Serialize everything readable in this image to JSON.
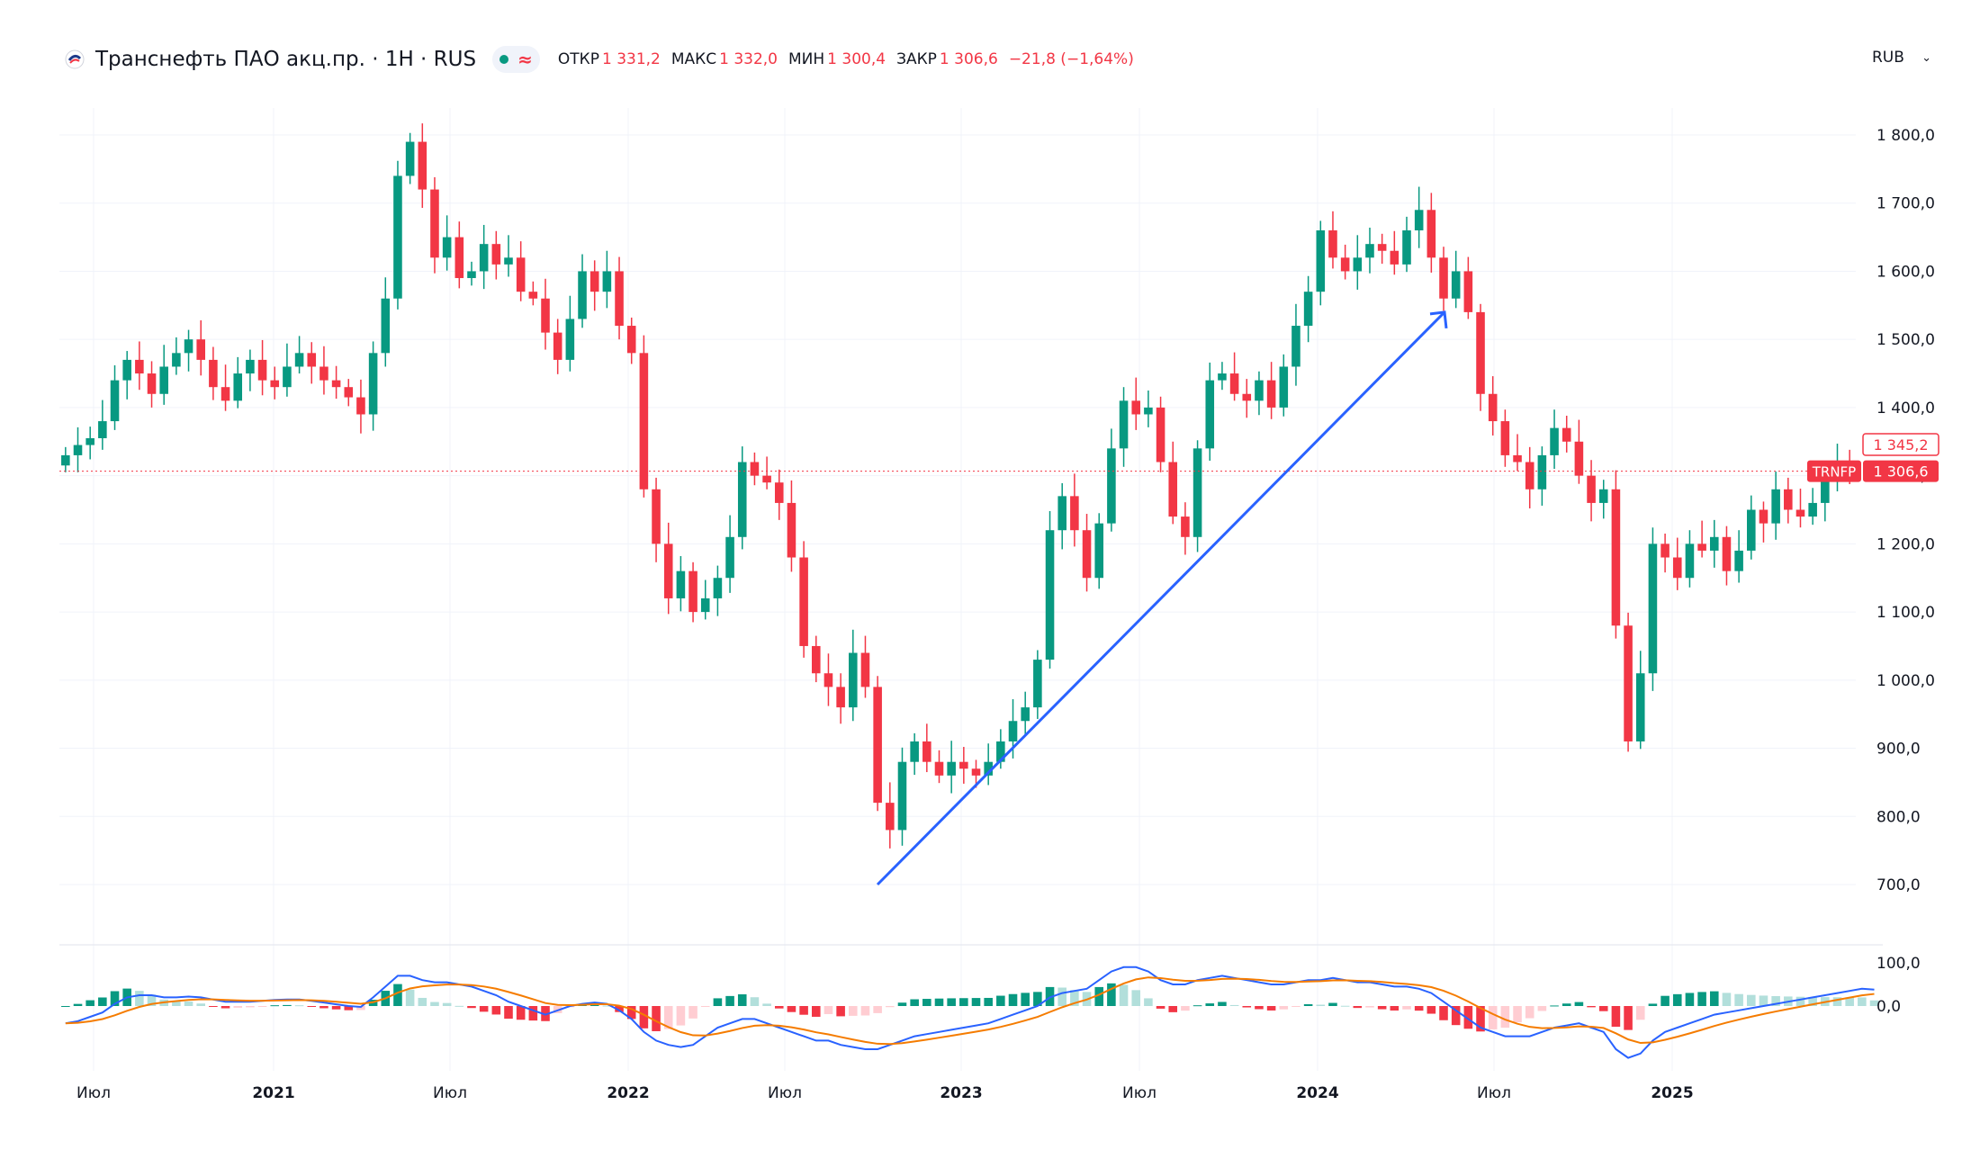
{
  "header": {
    "symbol_title": "Транснефть ПАО акц.пр. · 1Н · RUS",
    "status_glyph": "≈",
    "ohlc": [
      {
        "label": "ОТКР",
        "value": "1 331,2"
      },
      {
        "label": "МАКС",
        "value": "1 332,0"
      },
      {
        "label": "МИН",
        "value": "1 300,4"
      },
      {
        "label": "ЗАКР",
        "value": "1 306,6"
      },
      {
        "label": "",
        "value": "−21,8 (−1,64%)"
      }
    ]
  },
  "currency_selector": {
    "label": "RUB",
    "icon": "chevron-down-icon"
  },
  "colors": {
    "up": "#089981",
    "down": "#f23645",
    "macd": "#2962ff",
    "signal": "#f57c00",
    "hist_up_light": "#b2dfdb",
    "hist_down_light": "#ffcdd2",
    "trendline": "#2962ff"
  },
  "price_labels": {
    "ticker": "TRNFP",
    "last": "1 306,6",
    "prev": "1 345,2"
  },
  "chart_data": {
    "type": "candlestick",
    "period": "1 week",
    "y_ticks": [
      "1 800,0",
      "1 700,0",
      "1 600,0",
      "1 500,0",
      "1 400,0",
      "1 300,0",
      "1 200,0",
      "1 100,0",
      "1 000,0",
      "900,0",
      "800,0",
      "700,0"
    ],
    "ylim": [
      650,
      1860
    ],
    "x_ticks": [
      "Июл",
      "2021",
      "Июл",
      "2022",
      "Июл",
      "2023",
      "Июл",
      "2024",
      "Июл",
      "2025"
    ],
    "close_path": [
      1330,
      1345,
      1355,
      1380,
      1440,
      1470,
      1450,
      1420,
      1460,
      1480,
      1500,
      1470,
      1430,
      1410,
      1450,
      1470,
      1440,
      1430,
      1460,
      1480,
      1460,
      1440,
      1430,
      1415,
      1390,
      1480,
      1560,
      1740,
      1790,
      1720,
      1620,
      1650,
      1590,
      1600,
      1640,
      1610,
      1620,
      1570,
      1560,
      1510,
      1470,
      1530,
      1600,
      1570,
      1600,
      1520,
      1480,
      1280,
      1200,
      1120,
      1160,
      1100,
      1120,
      1150,
      1210,
      1320,
      1300,
      1290,
      1260,
      1180,
      1050,
      1010,
      990,
      960,
      1040,
      990,
      820,
      780,
      880,
      910,
      880,
      860,
      880,
      870,
      860,
      880,
      910,
      940,
      960,
      1030,
      1220,
      1270,
      1220,
      1150,
      1230,
      1340,
      1410,
      1390,
      1400,
      1320,
      1240,
      1210,
      1340,
      1440,
      1450,
      1420,
      1410,
      1440,
      1400,
      1460,
      1520,
      1570,
      1660,
      1620,
      1600,
      1620,
      1640,
      1630,
      1610,
      1660,
      1690,
      1620,
      1560,
      1600,
      1540,
      1420,
      1380,
      1330,
      1320,
      1280,
      1330,
      1370,
      1350,
      1300,
      1260,
      1280,
      1080,
      910,
      1010,
      1200,
      1180,
      1150,
      1200,
      1190,
      1210,
      1160,
      1190,
      1250,
      1230,
      1280,
      1250,
      1240,
      1260,
      1300,
      1320,
      1306.6
    ],
    "macd_path": [
      -40,
      -35,
      -25,
      -15,
      5,
      20,
      25,
      25,
      20,
      20,
      22,
      20,
      15,
      10,
      10,
      10,
      12,
      14,
      15,
      15,
      12,
      8,
      4,
      0,
      -2,
      20,
      45,
      70,
      70,
      60,
      55,
      55,
      50,
      45,
      35,
      25,
      10,
      0,
      -10,
      -20,
      -10,
      0,
      5,
      8,
      5,
      -10,
      -30,
      -60,
      -80,
      -90,
      -95,
      -90,
      -70,
      -50,
      -40,
      -30,
      -30,
      -40,
      -50,
      -60,
      -70,
      -80,
      -80,
      -90,
      -95,
      -100,
      -100,
      -90,
      -80,
      -70,
      -65,
      -60,
      -55,
      -50,
      -45,
      -40,
      -30,
      -20,
      -10,
      0,
      20,
      30,
      35,
      40,
      60,
      80,
      90,
      90,
      80,
      60,
      50,
      50,
      60,
      65,
      70,
      65,
      60,
      55,
      50,
      50,
      55,
      60,
      60,
      65,
      60,
      55,
      55,
      50,
      45,
      45,
      40,
      30,
      10,
      -10,
      -30,
      -50,
      -60,
      -70,
      -70,
      -70,
      -60,
      -50,
      -45,
      -40,
      -50,
      -60,
      -100,
      -120,
      -110,
      -80,
      -60,
      -50,
      -40,
      -30,
      -20,
      -15,
      -10,
      -5,
      0,
      5,
      10,
      15,
      20,
      25,
      30,
      35,
      40,
      38
    ],
    "indicators": [
      {
        "name": "MACD"
      },
      {
        "name": "Signal"
      }
    ],
    "macd_ticks": [
      "100,0",
      "0,0"
    ],
    "trendline": {
      "from": {
        "x": "2022-09",
        "y": 700
      },
      "to": {
        "x": "2024-05",
        "y": 1540
      }
    }
  }
}
